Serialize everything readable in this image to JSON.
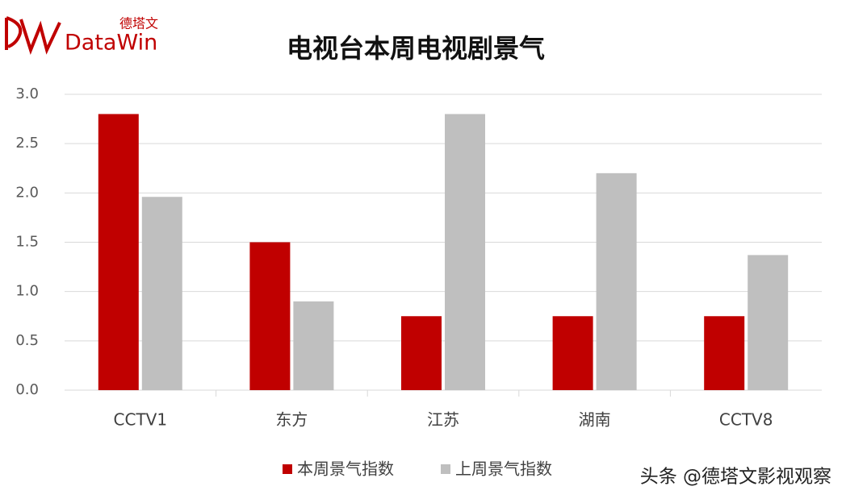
{
  "chart_data": {
    "type": "bar",
    "title": "电视台本周电视剧景气",
    "logo_brand": "德塔文",
    "logo_text": "DataWin",
    "watermark": "头条 @德塔文影视观察",
    "categories": [
      "CCTV1",
      "东方",
      "江苏",
      "湖南",
      "CCTV8"
    ],
    "series": [
      {
        "name": "本周景气指数",
        "color": "#c00000",
        "values": [
          2.8,
          1.5,
          0.75,
          0.75,
          0.75
        ]
      },
      {
        "name": "上周景气指数",
        "color": "#bfbfbf",
        "values": [
          1.96,
          0.9,
          2.8,
          2.2,
          1.37
        ]
      }
    ],
    "ylim": [
      0,
      3
    ],
    "yticks": [
      {
        "value": 0,
        "label": "0.0"
      },
      {
        "value": 0.5,
        "label": "0.5"
      },
      {
        "value": 1,
        "label": "1.0"
      },
      {
        "value": 1.5,
        "label": "1.5"
      },
      {
        "value": 2,
        "label": "2.0"
      },
      {
        "value": 2.5,
        "label": "2.5"
      },
      {
        "value": 3,
        "label": "3.0"
      }
    ],
    "grid": true,
    "legend": "bottom"
  }
}
